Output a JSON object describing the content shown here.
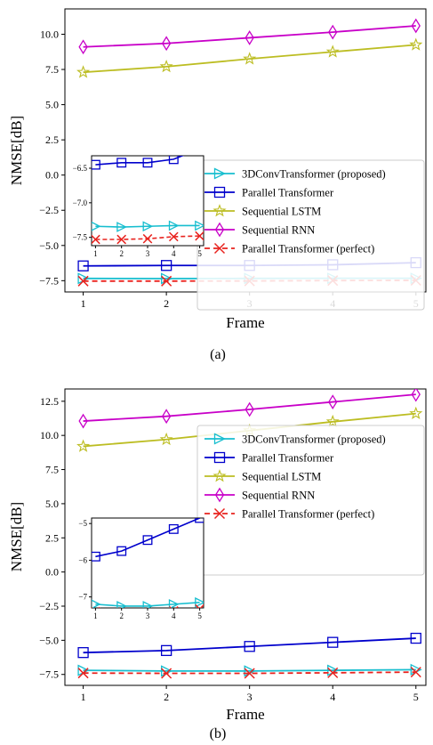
{
  "chart_data": [
    {
      "type": "line",
      "caption": "(a)",
      "xlabel": "Frame",
      "ylabel": "NMSE[dB]",
      "x": [
        1,
        2,
        3,
        4,
        5
      ],
      "xlim": [
        0.78,
        5.12
      ],
      "ylim": [
        -8.3,
        11.8
      ],
      "yticks": [
        -7.5,
        -5.0,
        -2.5,
        0.0,
        2.5,
        5.0,
        7.5,
        10.0
      ],
      "grid": false,
      "legend_position": "center-right",
      "series": [
        {
          "name": "3DConvTransformer (proposed)",
          "color": "#17becf",
          "marker": "triangle-right",
          "dash": "solid",
          "values": [
            -7.34,
            -7.35,
            -7.34,
            -7.33,
            -7.33
          ]
        },
        {
          "name": "Parallel Transformer",
          "color": "#0000cc",
          "marker": "square",
          "dash": "solid",
          "values": [
            -6.45,
            -6.42,
            -6.42,
            -6.37,
            -6.22
          ]
        },
        {
          "name": "Sequential LSTM",
          "color": "#bcbd22",
          "marker": "star",
          "dash": "solid",
          "values": [
            7.3,
            7.7,
            8.25,
            8.75,
            9.25
          ]
        },
        {
          "name": "Sequential RNN",
          "color": "#c800c8",
          "marker": "diamond",
          "dash": "solid",
          "values": [
            9.1,
            9.35,
            9.75,
            10.15,
            10.6
          ]
        },
        {
          "name": "Parallel Transformer (perfect)",
          "color": "#e8231f",
          "marker": "x",
          "dash": "dashed",
          "values": [
            -7.53,
            -7.53,
            -7.52,
            -7.49,
            -7.48
          ]
        }
      ],
      "inset": {
        "xlim": [
          0.85,
          5.15
        ],
        "ylim": [
          -7.62,
          -6.32
        ],
        "yticks": [
          -7.5,
          -7.0,
          -6.5
        ],
        "ytick_labels": [
          "−7.5",
          "−7.0",
          "−6.5"
        ],
        "xticks": [
          1,
          2,
          3,
          4,
          5
        ]
      }
    },
    {
      "type": "line",
      "caption": "(b)",
      "xlabel": "Frame",
      "ylabel": "NMSE[dB]",
      "x": [
        1,
        2,
        3,
        4,
        5
      ],
      "xlim": [
        0.78,
        5.12
      ],
      "ylim": [
        -8.3,
        13.4
      ],
      "yticks": [
        -7.5,
        -5.0,
        -2.5,
        0.0,
        2.5,
        5.0,
        7.5,
        10.0,
        12.5
      ],
      "grid": false,
      "legend_position": "center-right",
      "series": [
        {
          "name": "3DConvTransformer (proposed)",
          "color": "#17becf",
          "marker": "triangle-right",
          "dash": "solid",
          "values": [
            -7.2,
            -7.25,
            -7.25,
            -7.2,
            -7.15
          ]
        },
        {
          "name": "Parallel Transformer",
          "color": "#0000cc",
          "marker": "square",
          "dash": "solid",
          "values": [
            -5.9,
            -5.75,
            -5.45,
            -5.15,
            -4.85
          ]
        },
        {
          "name": "Sequential LSTM",
          "color": "#bcbd22",
          "marker": "star",
          "dash": "solid",
          "values": [
            9.2,
            9.7,
            10.35,
            11.0,
            11.6
          ]
        },
        {
          "name": "Sequential RNN",
          "color": "#c800c8",
          "marker": "diamond",
          "dash": "solid",
          "values": [
            11.05,
            11.4,
            11.9,
            12.45,
            13.0
          ]
        },
        {
          "name": "Parallel Transformer (perfect)",
          "color": "#e8231f",
          "marker": "x",
          "dash": "dashed",
          "values": [
            -7.4,
            -7.42,
            -7.42,
            -7.38,
            -7.33
          ]
        }
      ],
      "inset": {
        "xlim": [
          0.85,
          5.15
        ],
        "ylim": [
          -7.3,
          -4.85
        ],
        "yticks": [
          -7,
          -6,
          -5
        ],
        "ytick_labels": [
          "−7",
          "−6",
          "−5"
        ],
        "xticks": [
          1,
          2,
          3,
          4,
          5
        ]
      }
    }
  ]
}
